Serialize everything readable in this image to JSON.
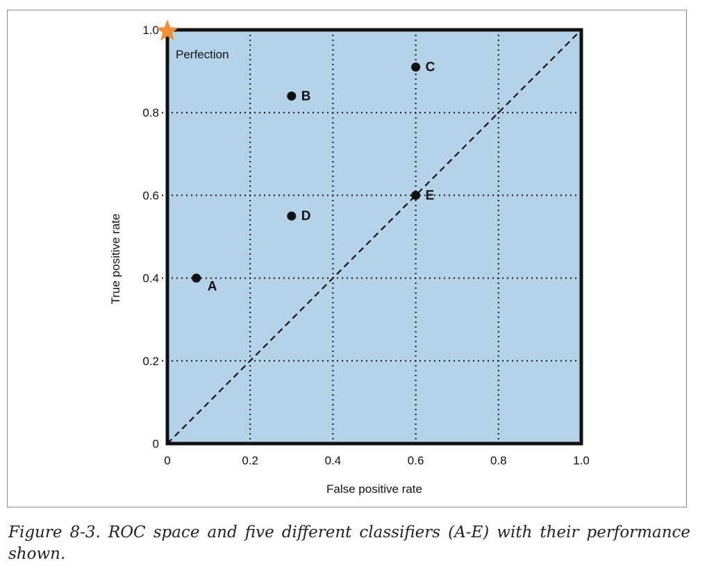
{
  "chart_data": {
    "type": "scatter",
    "title": "",
    "xlabel": "False positive rate",
    "ylabel": "True positive rate",
    "xlim": [
      0,
      1.0
    ],
    "ylim": [
      0,
      1.0
    ],
    "grid": true,
    "x_ticks": [
      0,
      0.2,
      0.4,
      0.6,
      0.8,
      1.0
    ],
    "y_ticks": [
      0,
      0.2,
      0.4,
      0.6,
      0.8,
      1.0
    ],
    "x_tick_labels": [
      "0",
      "0.2",
      "0.4",
      "0.6",
      "0.8",
      "1.0"
    ],
    "y_tick_labels": [
      "0",
      "0.2",
      "0.4",
      "0.6",
      "0.8",
      "1.0"
    ],
    "points": [
      {
        "label": "A",
        "x": 0.07,
        "y": 0.4
      },
      {
        "label": "B",
        "x": 0.3,
        "y": 0.84
      },
      {
        "label": "C",
        "x": 0.6,
        "y": 0.91
      },
      {
        "label": "D",
        "x": 0.3,
        "y": 0.55
      },
      {
        "label": "E",
        "x": 0.6,
        "y": 0.6
      }
    ],
    "diagonal": {
      "from": [
        0,
        0
      ],
      "to": [
        1,
        1
      ],
      "style": "dashed"
    },
    "perfection": {
      "label": "Perfection",
      "x": 0,
      "y": 1.0,
      "marker": "star"
    }
  },
  "colors": {
    "plot_background": "#b4d3e8",
    "star": "#f0913a",
    "ink": "#111111"
  },
  "caption": "Figure 8-3. ROC space and five different classifiers (A-E) with their performance shown."
}
